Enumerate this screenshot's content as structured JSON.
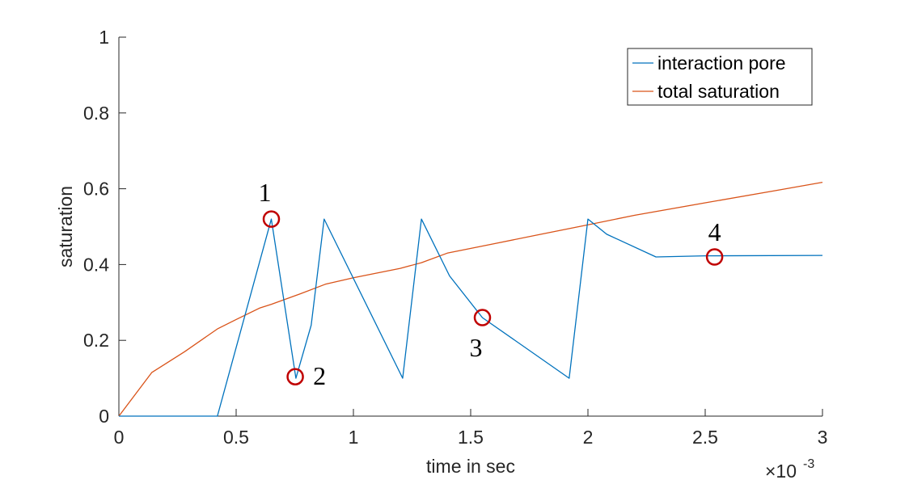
{
  "chart_data": {
    "type": "line",
    "xlabel": "time in sec",
    "ylabel": "saturation",
    "xlim": [
      0,
      0.003
    ],
    "ylim": [
      0,
      1
    ],
    "x_scale_exponent_label": "×10",
    "x_scale_exponent_power": "-3",
    "x_ticks": [
      0,
      0.0005,
      0.001,
      0.0015,
      0.002,
      0.0025,
      0.003
    ],
    "x_tick_labels": [
      "0",
      "0.5",
      "1",
      "1.5",
      "2",
      "2.5",
      "3"
    ],
    "y_ticks": [
      0,
      0.2,
      0.4,
      0.6,
      0.8,
      1
    ],
    "y_tick_labels": [
      "0",
      "0.2",
      "0.4",
      "0.6",
      "0.8",
      "1"
    ],
    "grid": false,
    "legend_position": "top-right",
    "series": [
      {
        "name": "interaction pore",
        "color": "#0072BD",
        "x": [
          0,
          0.00042,
          0.00065,
          0.000755,
          0.00082,
          0.000875,
          0.00121,
          0.00129,
          0.00141,
          0.00155,
          0.00192,
          0.002,
          0.00208,
          0.00229,
          0.0025,
          0.003
        ],
        "y": [
          0,
          0,
          0.52,
          0.1,
          0.24,
          0.52,
          0.1,
          0.52,
          0.37,
          0.26,
          0.1,
          0.52,
          0.48,
          0.42,
          0.423,
          0.424
        ]
      },
      {
        "name": "total saturation",
        "color": "#D95319",
        "x": [
          0,
          0.00014,
          0.00028,
          0.00042,
          0.0005,
          0.0006,
          0.00065,
          0.00077,
          0.00088,
          0.001,
          0.0012,
          0.00129,
          0.0014,
          0.0016,
          0.0018,
          0.002,
          0.0022,
          0.0025,
          0.0028,
          0.003
        ],
        "y": [
          0,
          0.115,
          0.17,
          0.23,
          0.255,
          0.285,
          0.295,
          0.322,
          0.348,
          0.365,
          0.39,
          0.405,
          0.43,
          0.455,
          0.48,
          0.505,
          0.53,
          0.563,
          0.595,
          0.617
        ]
      }
    ],
    "annotations": [
      {
        "label": "1",
        "x": 0.00065,
        "y": 0.52,
        "label_side": "above-left"
      },
      {
        "label": "2",
        "x": 0.000752,
        "y": 0.104,
        "label_side": "right"
      },
      {
        "label": "3",
        "x": 0.00155,
        "y": 0.26,
        "label_side": "below-left"
      },
      {
        "label": "4",
        "x": 0.00254,
        "y": 0.42,
        "label_side": "above"
      }
    ],
    "annotation_color": "#C00000"
  }
}
